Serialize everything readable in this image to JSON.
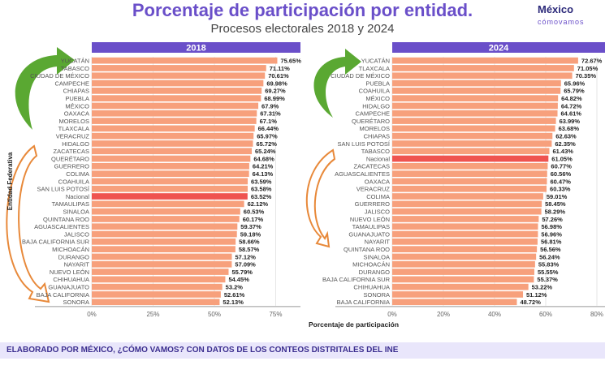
{
  "header": {
    "title": "Porcentaje de participación por entidad.",
    "subtitle": "Procesos electorales 2018 y 2024",
    "logo_main": "México",
    "logo_sub": "cómovamos"
  },
  "footer": "ELABORADO POR MÉXICO, ¿CÓMO VAMOS? CON DATOS DE LOS CONTEOS DISTRITALES DEL INE",
  "colors": {
    "bar": "#f7a07c",
    "national": "#ef5350",
    "header": "#6a4fc9"
  },
  "chart_data": [
    {
      "type": "bar",
      "title": "2018",
      "ylabel": "Entidad Federativa",
      "xlabel": "",
      "xlim": [
        0,
        85
      ],
      "ticks": [
        "0%",
        "25%",
        "50%",
        "75%"
      ],
      "tick_values": [
        0,
        25,
        50,
        75
      ],
      "categories": [
        "YUCATÁN",
        "TABASCO",
        "CIUDAD DE MÉXICO",
        "CAMPECHE",
        "CHIAPAS",
        "PUEBLA",
        "MÉXICO",
        "OAXACA",
        "MORELOS",
        "TLAXCALA",
        "VERACRUZ",
        "HIDALGO",
        "ZACATECAS",
        "QUERÉTARO",
        "GUERRERO",
        "COLIMA",
        "COAHUILA",
        "SAN LUIS POTOSÍ",
        "Nacional",
        "TAMAULIPAS",
        "SINALOA",
        "QUINTANA ROO",
        "AGUASCALIENTES",
        "JALISCO",
        "BAJA CALIFORNIA SUR",
        "MICHOACÁN",
        "DURANGO",
        "NAYARIT",
        "NUEVO LEÓN",
        "CHIHUAHUA",
        "GUANAJUATO",
        "BAJA CALIFORNIA",
        "SONORA"
      ],
      "values": [
        75.65,
        71.11,
        70.61,
        69.98,
        69.27,
        68.99,
        67.9,
        67.31,
        67.1,
        66.44,
        65.97,
        65.72,
        65.24,
        64.68,
        64.21,
        64.13,
        63.59,
        63.58,
        63.52,
        62.12,
        60.53,
        60.17,
        59.37,
        59.18,
        58.66,
        58.57,
        57.12,
        57.09,
        55.79,
        54.45,
        53.2,
        52.61,
        52.13
      ],
      "labels": [
        "75.65%",
        "71.11%",
        "70.61%",
        "69.98%",
        "69.27%",
        "68.99%",
        "67.9%",
        "67.31%",
        "67.1%",
        "66.44%",
        "65.97%",
        "65.72%",
        "65.24%",
        "64.68%",
        "64.21%",
        "64.13%",
        "63.59%",
        "63.58%",
        "63.52%",
        "62.12%",
        "60.53%",
        "60.17%",
        "59.37%",
        "59.18%",
        "58.66%",
        "58.57%",
        "57.12%",
        "57.09%",
        "55.79%",
        "54.45%",
        "53.2%",
        "52.61%",
        "52.13%"
      ]
    },
    {
      "type": "bar",
      "title": "2024",
      "xlabel": "Porcentaje de participación",
      "xlim": [
        0,
        82
      ],
      "ticks": [
        "0%",
        "20%",
        "40%",
        "60%",
        "80%"
      ],
      "tick_values": [
        0,
        20,
        40,
        60,
        80
      ],
      "categories": [
        "YUCATÁN",
        "TLAXCALA",
        "CIUDAD DE MÉXICO",
        "PUEBLA",
        "COAHUILA",
        "MÉXICO",
        "HIDALGO",
        "CAMPECHE",
        "QUERÉTARO",
        "MORELOS",
        "CHIAPAS",
        "SAN LUIS POTOSÍ",
        "TABASCO",
        "Nacional",
        "ZACATECAS",
        "AGUASCALIENTES",
        "OAXACA",
        "VERACRUZ",
        "COLIMA",
        "GUERRERO",
        "JALISCO",
        "NUEVO LEÓN",
        "TAMAULIPAS",
        "GUANAJUATO",
        "NAYARIT",
        "QUINTANA ROO",
        "SINALOA",
        "MICHOACÁN",
        "DURANGO",
        "BAJA CALIFORNIA SUR",
        "CHIHUAHUA",
        "SONORA",
        "BAJA CALIFORNIA"
      ],
      "values": [
        72.67,
        71.05,
        70.35,
        65.96,
        65.79,
        64.82,
        64.72,
        64.61,
        63.99,
        63.68,
        62.63,
        62.35,
        61.43,
        61.05,
        60.77,
        60.56,
        60.47,
        60.33,
        59.01,
        58.45,
        58.29,
        57.26,
        56.98,
        56.96,
        56.81,
        56.56,
        56.24,
        55.83,
        55.55,
        55.37,
        53.22,
        51.12,
        48.72
      ],
      "labels": [
        "72.67%",
        "71.05%",
        "70.35%",
        "65.96%",
        "65.79%",
        "64.82%",
        "64.72%",
        "64.61%",
        "63.99%",
        "63.68%",
        "62.63%",
        "62.35%",
        "61.43%",
        "61.05%",
        "60.77%",
        "60.56%",
        "60.47%",
        "60.33%",
        "59.01%",
        "58.45%",
        "58.29%",
        "57.26%",
        "56.98%",
        "56.96%",
        "56.81%",
        "56.56%",
        "56.24%",
        "55.83%",
        "55.55%",
        "55.37%",
        "53.22%",
        "51.12%",
        "48.72%"
      ]
    }
  ]
}
